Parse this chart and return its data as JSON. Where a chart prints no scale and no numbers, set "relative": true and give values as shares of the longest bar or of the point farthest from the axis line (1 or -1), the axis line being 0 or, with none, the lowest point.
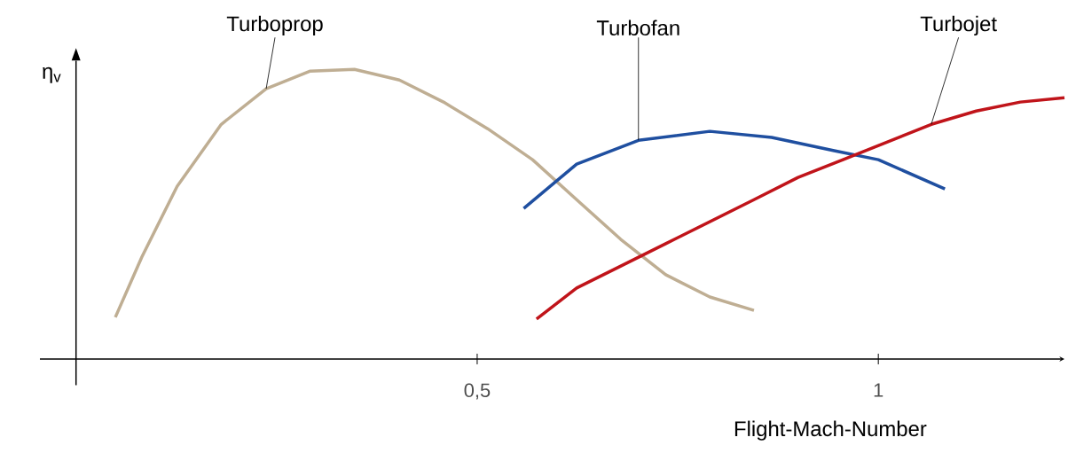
{
  "chart_data": {
    "type": "line",
    "relative": true,
    "xlabel": "Flight-Mach-Number",
    "ylabel": "η$_{v}$",
    "xlim": [
      -0.045,
      1.232
    ],
    "xticks": [
      {
        "value": 0.5,
        "label": "0,5"
      },
      1
    ],
    "series": [
      {
        "name": "Turboprop",
        "color": "#bfae93",
        "x": [
          0.049,
          0.082,
          0.126,
          0.181,
          0.237,
          0.292,
          0.347,
          0.403,
          0.458,
          0.513,
          0.569,
          0.624,
          0.679,
          0.735,
          0.79,
          0.845
        ],
        "values": [
          0.144,
          0.352,
          0.596,
          0.81,
          0.933,
          0.994,
          1.0,
          0.963,
          0.887,
          0.795,
          0.688,
          0.55,
          0.413,
          0.291,
          0.214,
          0.168
        ]
      },
      {
        "name": "Turbofan",
        "color": "#1f4fa0",
        "x": [
          0.558,
          0.624,
          0.701,
          0.79,
          0.867,
          0.945,
          1.0,
          1.083
        ],
        "values": [
          0.52,
          0.673,
          0.755,
          0.786,
          0.765,
          0.719,
          0.688,
          0.587
        ]
      },
      {
        "name": "Turbojet",
        "color": "#c0141a",
        "x": [
          0.574,
          0.624,
          0.679,
          0.735,
          0.79,
          0.845,
          0.9,
          0.956,
          1.011,
          1.066,
          1.122,
          1.177,
          1.232
        ],
        "values": [
          0.138,
          0.245,
          0.321,
          0.398,
          0.474,
          0.55,
          0.627,
          0.688,
          0.749,
          0.81,
          0.856,
          0.887,
          0.902
        ]
      }
    ]
  }
}
